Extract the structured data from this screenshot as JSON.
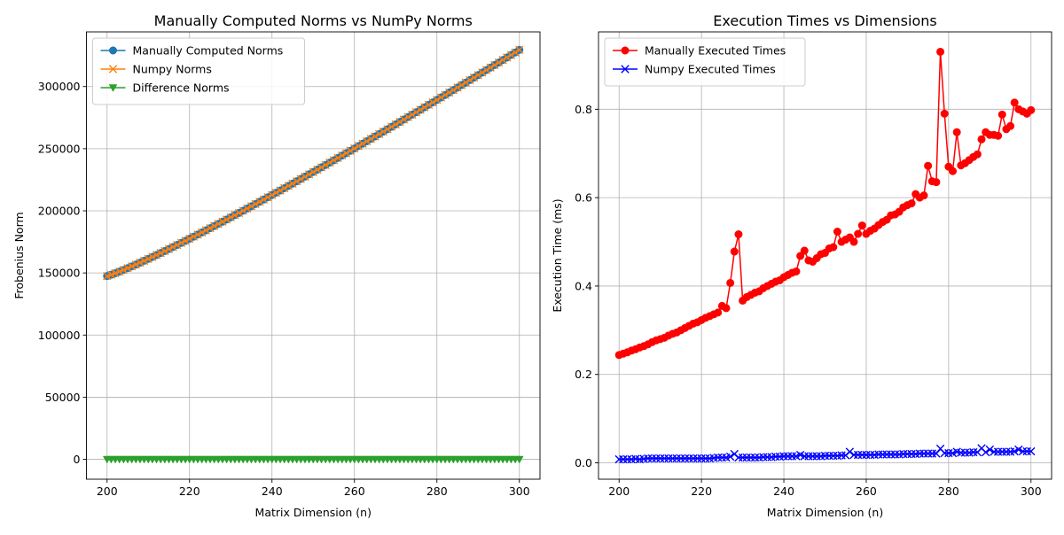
{
  "chart_data": [
    {
      "type": "line",
      "title": "Manually Computed Norms vs NumPy Norms",
      "xlabel": "Matrix Dimension (n)",
      "ylabel": "Frobenius Norm",
      "xlim": [
        195,
        305
      ],
      "ylim": [
        -16000,
        344000
      ],
      "xticks": [
        200,
        220,
        240,
        260,
        280,
        300
      ],
      "xtick_labels": [
        "200",
        "220",
        "240",
        "260",
        "280",
        "300"
      ],
      "yticks": [
        0,
        50000,
        100000,
        150000,
        200000,
        250000,
        300000
      ],
      "ytick_labels": [
        "0",
        "50000",
        "100000",
        "150000",
        "200000",
        "250000",
        "300000"
      ],
      "grid": true,
      "legend_position": "upper-left",
      "x_start": 200,
      "x_end": 300,
      "series": [
        {
          "name": "Manually Computed Norms",
          "color": "#1f77b4",
          "marker": "circle",
          "y_start": 147500,
          "y_end": 329500,
          "exponent": 1.12
        },
        {
          "name": "Numpy Norms",
          "color": "#ff7f0e",
          "marker": "x",
          "y_start": 147500,
          "y_end": 329500,
          "exponent": 1.12
        },
        {
          "name": "Difference Norms",
          "color": "#2ca02c",
          "marker": "triangle-down",
          "constant": 0
        }
      ]
    },
    {
      "type": "line",
      "title": "Execution Times vs Dimensions",
      "xlabel": "Matrix Dimension (n)",
      "ylabel": "Execution Time (ms)",
      "xlim": [
        195,
        305
      ],
      "ylim": [
        -0.037,
        0.975
      ],
      "xticks": [
        200,
        220,
        240,
        260,
        280,
        300
      ],
      "xtick_labels": [
        "200",
        "220",
        "240",
        "260",
        "280",
        "300"
      ],
      "yticks": [
        0.0,
        0.2,
        0.4,
        0.6,
        0.8
      ],
      "ytick_labels": [
        "0.0",
        "0.2",
        "0.4",
        "0.6",
        "0.8"
      ],
      "grid": true,
      "legend_position": "upper-left",
      "series": [
        {
          "name": "Manually Executed Times",
          "color": "#ff0000",
          "marker": "circle",
          "x": [
            200,
            201,
            202,
            203,
            204,
            205,
            206,
            207,
            208,
            209,
            210,
            211,
            212,
            213,
            214,
            215,
            216,
            217,
            218,
            219,
            220,
            221,
            222,
            223,
            224,
            225,
            226,
            227,
            228,
            229,
            230,
            231,
            232,
            233,
            234,
            235,
            236,
            237,
            238,
            239,
            240,
            241,
            242,
            243,
            244,
            245,
            246,
            247,
            248,
            249,
            250,
            251,
            252,
            253,
            254,
            255,
            256,
            257,
            258,
            259,
            260,
            261,
            262,
            263,
            264,
            265,
            266,
            267,
            268,
            269,
            270,
            271,
            272,
            273,
            274,
            275,
            276,
            277,
            278,
            279,
            280,
            281,
            282,
            283,
            284,
            285,
            286,
            287,
            288,
            289,
            290,
            291,
            292,
            293,
            294,
            295,
            296,
            297,
            298,
            299,
            300
          ],
          "y": [
            0.244,
            0.247,
            0.25,
            0.254,
            0.257,
            0.261,
            0.264,
            0.268,
            0.273,
            0.277,
            0.28,
            0.283,
            0.288,
            0.292,
            0.295,
            0.3,
            0.305,
            0.31,
            0.315,
            0.318,
            0.323,
            0.328,
            0.332,
            0.336,
            0.34,
            0.355,
            0.35,
            0.407,
            0.478,
            0.517,
            0.367,
            0.375,
            0.38,
            0.385,
            0.388,
            0.395,
            0.4,
            0.405,
            0.41,
            0.413,
            0.42,
            0.425,
            0.43,
            0.433,
            0.468,
            0.48,
            0.458,
            0.455,
            0.463,
            0.472,
            0.475,
            0.485,
            0.488,
            0.523,
            0.5,
            0.505,
            0.51,
            0.5,
            0.518,
            0.537,
            0.518,
            0.525,
            0.53,
            0.538,
            0.545,
            0.55,
            0.56,
            0.562,
            0.568,
            0.578,
            0.583,
            0.587,
            0.608,
            0.6,
            0.605,
            0.672,
            0.637,
            0.635,
            0.93,
            0.79,
            0.67,
            0.66,
            0.748,
            0.673,
            0.678,
            0.685,
            0.692,
            0.698,
            0.732,
            0.748,
            0.742,
            0.742,
            0.74,
            0.788,
            0.755,
            0.762,
            0.815,
            0.8,
            0.795,
            0.79,
            0.798
          ]
        },
        {
          "name": "Numpy Executed Times",
          "color": "#0000ff",
          "marker": "x",
          "x": [
            200,
            201,
            202,
            203,
            204,
            205,
            206,
            207,
            208,
            209,
            210,
            211,
            212,
            213,
            214,
            215,
            216,
            217,
            218,
            219,
            220,
            221,
            222,
            223,
            224,
            225,
            226,
            227,
            228,
            229,
            230,
            231,
            232,
            233,
            234,
            235,
            236,
            237,
            238,
            239,
            240,
            241,
            242,
            243,
            244,
            245,
            246,
            247,
            248,
            249,
            250,
            251,
            252,
            253,
            254,
            255,
            256,
            257,
            258,
            259,
            260,
            261,
            262,
            263,
            264,
            265,
            266,
            267,
            268,
            269,
            270,
            271,
            272,
            273,
            274,
            275,
            276,
            277,
            278,
            279,
            280,
            281,
            282,
            283,
            284,
            285,
            286,
            287,
            288,
            289,
            290,
            291,
            292,
            293,
            294,
            295,
            296,
            297,
            298,
            299,
            300
          ],
          "y": [
            0.008,
            0.008,
            0.008,
            0.008,
            0.009,
            0.008,
            0.009,
            0.01,
            0.01,
            0.01,
            0.01,
            0.01,
            0.01,
            0.01,
            0.01,
            0.01,
            0.01,
            0.01,
            0.01,
            0.01,
            0.01,
            0.01,
            0.01,
            0.011,
            0.012,
            0.012,
            0.012,
            0.014,
            0.02,
            0.012,
            0.012,
            0.012,
            0.012,
            0.012,
            0.012,
            0.013,
            0.013,
            0.013,
            0.014,
            0.014,
            0.015,
            0.015,
            0.015,
            0.015,
            0.018,
            0.015,
            0.015,
            0.015,
            0.015,
            0.015,
            0.016,
            0.016,
            0.016,
            0.016,
            0.017,
            0.017,
            0.025,
            0.018,
            0.018,
            0.018,
            0.018,
            0.018,
            0.018,
            0.019,
            0.019,
            0.019,
            0.019,
            0.019,
            0.019,
            0.02,
            0.02,
            0.02,
            0.02,
            0.021,
            0.021,
            0.021,
            0.021,
            0.021,
            0.032,
            0.022,
            0.022,
            0.022,
            0.025,
            0.023,
            0.023,
            0.023,
            0.024,
            0.024,
            0.033,
            0.024,
            0.03,
            0.025,
            0.025,
            0.025,
            0.025,
            0.025,
            0.026,
            0.03,
            0.026,
            0.026,
            0.026
          ]
        }
      ]
    }
  ]
}
